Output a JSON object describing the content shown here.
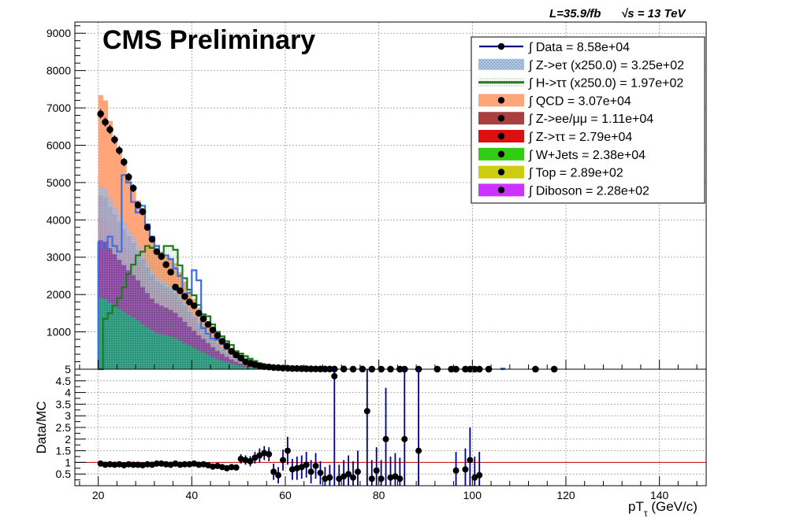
{
  "header": {
    "lumi_text": "L=35.9/fb",
    "energy_text": "√s = 13 TeV",
    "cms_label": "CMS Preliminary"
  },
  "legend": {
    "entries": [
      {
        "text": "∫ Data = 8.58e+04",
        "color": "#000080",
        "marker": "line-point"
      },
      {
        "text": "∫ Z->eτ (x250.0) = 3.25e+02",
        "color": "#7fa8cf",
        "marker": "hatch-box"
      },
      {
        "text": "∫ H->ττ (x250.0) = 1.97e+02",
        "color": "#2a7a2a",
        "marker": "hatch-line"
      },
      {
        "text": "∫ QCD = 3.07e+04",
        "color": "#ffa57a",
        "marker": "box-point"
      },
      {
        "text": "∫ Z->ee/μμ = 1.11e+04",
        "color": "#a8403f",
        "marker": "box-point"
      },
      {
        "text": "∫ Z->ττ = 2.79e+04",
        "color": "#dc1010",
        "marker": "box-point"
      },
      {
        "text": "∫ W+Jets = 2.38e+04",
        "color": "#33cc14",
        "marker": "box-point"
      },
      {
        "text": "∫ Top = 2.89e+02",
        "color": "#cccc10",
        "marker": "box-point"
      },
      {
        "text": "∫ Diboson = 2.28e+02",
        "color": "#cc33ff",
        "marker": "box-point"
      }
    ]
  },
  "top_panel": {
    "y_ticks": [
      "1000",
      "2000",
      "3000",
      "4000",
      "5000",
      "6000",
      "7000",
      "8000",
      "9000"
    ]
  },
  "bottom_panel": {
    "ylabel": "Data/MC",
    "xlabel": "pT",
    "xlabel_sub": "τ",
    "xlabel_unit": " (GeV/c)",
    "y_ticks": [
      "0.5",
      "1",
      "1.5",
      "2",
      "2.5",
      "3",
      "3.5",
      "4",
      "4.5",
      "5"
    ],
    "x_ticks": [
      "20",
      "40",
      "60",
      "80",
      "100",
      "120",
      "140"
    ]
  },
  "colors": {
    "data": "#000080",
    "ratio_line": "#cc0000",
    "signal_zetau": "#3b6fe0",
    "signal_htautau": "#1a7a1a",
    "qcd": "#ffa57a",
    "zll": "#a8403f",
    "ztautau": "#dc1010",
    "wjets": "#33cc14",
    "overlay_teal": "#2a8a7a",
    "overlay_purple": "#7a2a8a"
  },
  "chart_data": [
    {
      "type": "bar",
      "title": "",
      "xlabel": "",
      "ylabel": "",
      "xlim": [
        15,
        150
      ],
      "ylim": [
        0,
        9300
      ],
      "bin_width": 1,
      "bin_low_edges": [
        20,
        21,
        22,
        23,
        24,
        25,
        26,
        27,
        28,
        29,
        30,
        31,
        32,
        33,
        34,
        35,
        36,
        37,
        38,
        39,
        40,
        41,
        42,
        43,
        44,
        45,
        46,
        47,
        48,
        49,
        50,
        51,
        52,
        53,
        54,
        55,
        56,
        57,
        58,
        59,
        60
      ],
      "series": [
        {
          "name": "QCD",
          "stacked_total": [
            7340,
            7200,
            6650,
            6150,
            5830,
            5500,
            5150,
            4900,
            4520,
            4200,
            3780,
            3480,
            3230,
            3150,
            3070,
            2960,
            2840,
            2600,
            2350,
            2070,
            1880,
            1640,
            1440,
            1230,
            1040,
            860,
            700,
            560,
            440,
            330,
            250,
            190,
            140,
            100,
            70,
            50,
            30,
            20,
            10,
            5,
            2
          ]
        },
        {
          "name": "Z->ee/μμ",
          "stacked_total": [
            4650,
            4600,
            4350,
            4150,
            3950,
            3750,
            3560,
            3380,
            3180,
            2950,
            2720,
            2520,
            2350,
            2270,
            2200,
            2120,
            2020,
            1860,
            1700,
            1530,
            1390,
            1230,
            1090,
            940,
            800,
            670,
            550,
            440,
            350,
            270,
            200,
            150,
            110,
            80,
            55,
            40,
            25,
            15,
            8,
            4,
            2
          ]
        },
        {
          "name": "Z->ττ",
          "stacked_total": [
            4020,
            3980,
            3780,
            3600,
            3430,
            3270,
            3110,
            2960,
            2800,
            2600,
            2410,
            2240,
            2090,
            2020,
            1960,
            1890,
            1800,
            1660,
            1520,
            1370,
            1240,
            1100,
            980,
            850,
            720,
            600,
            500,
            400,
            320,
            250,
            185,
            140,
            100,
            75,
            50,
            35,
            22,
            14,
            7,
            3,
            1
          ]
        },
        {
          "name": "W+Jets",
          "stacked_total": [
            3460,
            3420,
            3240,
            3080,
            2930,
            2790,
            2650,
            2520,
            2380,
            2200,
            2040,
            1890,
            1760,
            1700,
            1650,
            1590,
            1510,
            1390,
            1270,
            1140,
            1030,
            910,
            810,
            700,
            590,
            490,
            410,
            330,
            260,
            200,
            150,
            110,
            80,
            60,
            40,
            28,
            18,
            11,
            6,
            3,
            1
          ]
        }
      ]
    },
    {
      "type": "line",
      "name": "Z->eτ (x250.0)",
      "xlim": [
        15,
        150
      ],
      "ylim": [
        0,
        9300
      ],
      "x": [
        20,
        21,
        22,
        23,
        24,
        25,
        26,
        27,
        28,
        29,
        30,
        31,
        32,
        33,
        34,
        35,
        36,
        37,
        38,
        39,
        40,
        41,
        42,
        43,
        44,
        45,
        46,
        47,
        48,
        49,
        50,
        51,
        52,
        53,
        54,
        55,
        56,
        57,
        58,
        59,
        60,
        61,
        62
      ],
      "values": [
        3400,
        3250,
        3550,
        3300,
        3150,
        5200,
        5000,
        4480,
        4200,
        4380,
        3880,
        3550,
        3300,
        3000,
        3050,
        2950,
        2700,
        2500,
        1900,
        2050,
        2650,
        2380,
        1100,
        950,
        820,
        790,
        680,
        540,
        460,
        330,
        250,
        190,
        140,
        100,
        70,
        50,
        35,
        25,
        15,
        10,
        5,
        3,
        2
      ]
    },
    {
      "type": "line",
      "name": "H->ττ (x250.0)",
      "xlim": [
        15,
        150
      ],
      "ylim": [
        0,
        9300
      ],
      "x": [
        20,
        21,
        22,
        23,
        24,
        25,
        26,
        27,
        28,
        29,
        30,
        31,
        32,
        33,
        34,
        35,
        36,
        37,
        38,
        39,
        40,
        41,
        42,
        43,
        44,
        45,
        46,
        47,
        48,
        49,
        50,
        51,
        52,
        53,
        54,
        55,
        56,
        57,
        58,
        59,
        60,
        61,
        62
      ],
      "values": [
        0,
        1350,
        1500,
        1700,
        1900,
        2200,
        2550,
        2800,
        3050,
        3150,
        3300,
        3250,
        3300,
        3100,
        3300,
        3300,
        3200,
        2780,
        2440,
        2130,
        1980,
        1720,
        1470,
        1420,
        1200,
        1000,
        880,
        750,
        650,
        480,
        420,
        350,
        280,
        220,
        160,
        110,
        80,
        55,
        40,
        25,
        15,
        8,
        4
      ]
    },
    {
      "type": "scatter",
      "name": "Data",
      "xlim": [
        15,
        150
      ],
      "ylim": [
        0,
        9300
      ],
      "x": [
        20.5,
        21.5,
        22.5,
        23.5,
        24.5,
        25.5,
        26.5,
        27.5,
        28.5,
        29.5,
        30.5,
        31.5,
        32.5,
        33.5,
        34.5,
        35.5,
        36.5,
        37.5,
        38.5,
        39.5,
        40.5,
        41.5,
        42.5,
        43.5,
        44.5,
        45.5,
        46.5,
        47.5,
        48.5,
        49.5,
        50.5,
        51.5,
        52.5,
        53.5,
        54.5,
        55.5,
        56.5,
        57.5,
        58.5,
        59.5,
        60.5,
        61.5,
        62.5,
        63.5,
        64.5,
        65.5,
        66.5,
        67.5,
        68.5,
        69.5,
        70.5,
        72.5,
        74.5,
        76.5,
        78.5,
        80.5,
        82.5,
        84.5,
        85.5,
        88.5,
        92.5,
        95.5,
        96.5,
        98.5,
        99.5,
        100.5,
        101.5,
        103.5,
        113.5,
        117.5
      ],
      "values": [
        6840,
        6620,
        6420,
        6150,
        5860,
        5550,
        5150,
        4850,
        4400,
        4220,
        3800,
        3480,
        3150,
        3020,
        2800,
        2600,
        2200,
        2100,
        1950,
        1800,
        1700,
        1500,
        1350,
        1200,
        1050,
        900,
        750,
        620,
        480,
        380,
        300,
        200,
        160,
        120,
        90,
        70,
        60,
        45,
        40,
        30,
        25,
        20,
        18,
        15,
        12,
        10,
        8,
        7,
        5,
        5,
        3,
        3,
        2,
        3,
        2,
        2,
        2,
        2,
        2,
        2,
        2,
        1,
        1,
        1,
        1,
        1,
        1,
        1,
        1,
        1
      ]
    },
    {
      "type": "scatter",
      "name": "Data/MC",
      "xlabel": "pTτ (GeV/c)",
      "ylabel": "Data/MC",
      "xlim": [
        15,
        150
      ],
      "ylim": [
        0,
        5
      ],
      "x": [
        20.5,
        21.5,
        22.5,
        23.5,
        24.5,
        25.5,
        26.5,
        27.5,
        28.5,
        29.5,
        30.5,
        31.5,
        32.5,
        33.5,
        34.5,
        35.5,
        36.5,
        37.5,
        38.5,
        39.5,
        40.5,
        41.5,
        42.5,
        43.5,
        44.5,
        45.5,
        46.5,
        47.5,
        48.5,
        49.5,
        50.5,
        51.5,
        52.5,
        53.5,
        54.5,
        55.5,
        56.5,
        57.5,
        58.5,
        59.5,
        60.5,
        61.5,
        62.5,
        63.5,
        64.5,
        65.5,
        66.5,
        67.5,
        68.5,
        69.5,
        70.5,
        71.5,
        72.5,
        73.5,
        74.5,
        75.5,
        77.5,
        78.5,
        79.5,
        80.5,
        81.5,
        82.5,
        83.5,
        84.5,
        85.5,
        88.5,
        96.5,
        98.5,
        99.5,
        100.5,
        101.5
      ],
      "values": [
        0.95,
        0.9,
        0.92,
        0.9,
        0.92,
        0.88,
        0.92,
        0.9,
        0.9,
        0.88,
        0.92,
        0.9,
        0.95,
        0.95,
        0.92,
        0.9,
        0.95,
        0.9,
        0.92,
        0.92,
        0.95,
        0.9,
        0.92,
        0.88,
        0.82,
        0.85,
        0.8,
        0.75,
        0.8,
        0.78,
        1.15,
        1.1,
        1.05,
        1.2,
        1.3,
        1.4,
        1.35,
        0.6,
        0.45,
        1.1,
        1.5,
        0.7,
        0.75,
        0.8,
        0.9,
        0.6,
        0.85,
        0.55,
        0.3,
        0.35,
        4.7,
        0.3,
        0.4,
        0.5,
        0.35,
        0.6,
        3.2,
        0.3,
        0.65,
        0.3,
        2.0,
        0.35,
        0.4,
        0.3,
        2.0,
        1.5,
        0.65,
        0.7,
        1.1,
        0.35,
        0.45
      ],
      "error_high": [
        0.05,
        0.05,
        0.05,
        0.05,
        0.05,
        0.05,
        0.05,
        0.05,
        0.05,
        0.05,
        0.05,
        0.05,
        0.05,
        0.05,
        0.05,
        0.05,
        0.05,
        0.05,
        0.05,
        0.05,
        0.05,
        0.05,
        0.06,
        0.06,
        0.07,
        0.07,
        0.08,
        0.08,
        0.1,
        0.1,
        0.2,
        0.2,
        0.22,
        0.25,
        0.3,
        0.3,
        0.3,
        0.35,
        0.35,
        0.45,
        0.6,
        0.45,
        0.5,
        0.5,
        0.55,
        0.5,
        0.55,
        0.5,
        0.5,
        0.55,
        2.6,
        0.6,
        0.7,
        0.8,
        0.7,
        0.9,
        2.2,
        0.8,
        1.0,
        0.8,
        2.2,
        0.9,
        1.0,
        0.9,
        3.2,
        3.5,
        0.8,
        0.9,
        1.4,
        0.9,
        1.0
      ],
      "error_low": [
        0.05,
        0.05,
        0.05,
        0.05,
        0.05,
        0.05,
        0.05,
        0.05,
        0.05,
        0.05,
        0.05,
        0.05,
        0.05,
        0.05,
        0.05,
        0.05,
        0.05,
        0.05,
        0.05,
        0.05,
        0.05,
        0.05,
        0.06,
        0.06,
        0.07,
        0.07,
        0.08,
        0.08,
        0.1,
        0.1,
        0.2,
        0.2,
        0.22,
        0.25,
        0.3,
        0.3,
        0.3,
        0.35,
        0.35,
        0.45,
        0.6,
        0.45,
        0.5,
        0.5,
        0.55,
        0.5,
        0.55,
        0.5,
        0.3,
        0.35,
        4.7,
        0.3,
        0.4,
        0.5,
        0.35,
        0.6,
        3.2,
        0.3,
        0.65,
        0.3,
        2.0,
        0.35,
        0.4,
        0.3,
        2.0,
        1.5,
        0.65,
        0.7,
        1.1,
        0.35,
        0.45
      ],
      "reference_line": 1
    }
  ]
}
